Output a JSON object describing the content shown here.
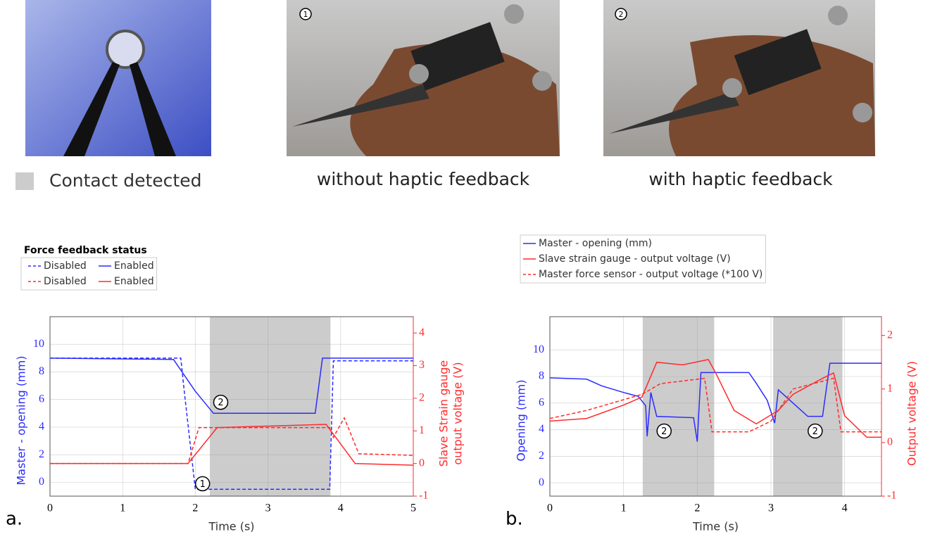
{
  "figure": {
    "photo_markers": [
      "1",
      "2"
    ],
    "contact_label": "Contact detected",
    "captions": [
      "without haptic feedback",
      "with haptic feedback"
    ],
    "panel_labels": [
      "a.",
      "b."
    ]
  },
  "chart_data": [
    {
      "type": "line",
      "xlabel": "Time (s)",
      "ylabel": [
        "Master - opening (mm)"
      ],
      "y2label": [
        "Slave Strain gauge",
        "output voltage (V)"
      ],
      "xlim": [
        0,
        5
      ],
      "xticks": [
        0,
        1,
        2,
        3,
        4,
        5
      ],
      "ylim": [
        -1,
        12
      ],
      "yticks": [
        0,
        2,
        4,
        6,
        8,
        10
      ],
      "y2lim": [
        -1,
        4.5
      ],
      "y2ticks": [
        -1,
        0,
        1,
        2,
        3,
        4
      ],
      "grid": true,
      "contact_regions": [
        [
          2.2,
          3.86
        ]
      ],
      "legend_title": "Force feedback status",
      "annotations": [
        "2",
        "1"
      ],
      "series": [
        {
          "name": "Disabled",
          "color": "#2b2bff",
          "dash": true,
          "x": [
            0,
            1.8,
            1.85,
            2.0,
            3.85,
            3.9,
            5
          ],
          "values": [
            9,
            9,
            6.5,
            -0.5,
            -0.5,
            8.8,
            8.8
          ]
        },
        {
          "name": "Enabled",
          "color": "#2b2bff",
          "dash": false,
          "x": [
            0,
            1.7,
            2.0,
            2.25,
            3.65,
            3.75,
            5
          ],
          "values": [
            9,
            8.9,
            6.6,
            5.0,
            5.0,
            9,
            9
          ]
        },
        {
          "name": "Disabled",
          "color": "#ff2b2b",
          "dash": true,
          "axis": "y2",
          "x": [
            0,
            1.9,
            2.05,
            3.85,
            3.9,
            4.05,
            4.25,
            5
          ],
          "values": [
            0,
            0,
            1.1,
            1.1,
            0.8,
            1.4,
            0.3,
            0.25
          ]
        },
        {
          "name": "Enabled",
          "color": "#ff2b2b",
          "dash": false,
          "axis": "y2",
          "x": [
            0,
            1.9,
            2.3,
            3.8,
            4.2,
            5
          ],
          "values": [
            0,
            0,
            1.1,
            1.2,
            0,
            -0.05
          ]
        }
      ]
    },
    {
      "type": "line",
      "xlabel": "Time (s)",
      "ylabel": [
        "Opening (mm)"
      ],
      "y2label": [
        "Output voltage (V)"
      ],
      "xlim": [
        0,
        4.5
      ],
      "xticks": [
        0,
        1,
        2,
        3,
        4
      ],
      "ylim": [
        -1,
        12.5
      ],
      "yticks": [
        0,
        2,
        4,
        6,
        8,
        10
      ],
      "y2lim": [
        -1,
        2.35
      ],
      "y2ticks": [
        -1,
        0,
        1,
        2
      ],
      "grid": true,
      "contact_regions": [
        [
          1.26,
          2.23
        ],
        [
          3.03,
          3.97
        ]
      ],
      "annotations": [
        "2",
        "2"
      ],
      "series": [
        {
          "name": "Master - opening (mm)",
          "color": "#2b2bff",
          "dash": false,
          "x": [
            0,
            0.5,
            0.7,
            1.0,
            1.2,
            1.3,
            1.32,
            1.37,
            1.45,
            1.95,
            2.0,
            2.05,
            2.7,
            2.8,
            2.95,
            3.05,
            3.1,
            3.3,
            3.5,
            3.7,
            3.8,
            4.5
          ],
          "values": [
            7.9,
            7.8,
            7.3,
            6.8,
            6.5,
            5.8,
            3.5,
            6.8,
            5,
            4.9,
            3.1,
            8.3,
            8.3,
            7.5,
            6.2,
            4.5,
            7.0,
            6,
            5,
            5,
            9,
            9
          ]
        },
        {
          "name": "Slave strain gauge - output voltage (V)",
          "color": "#ff2b2b",
          "dash": false,
          "axis": "y2",
          "x": [
            0,
            0.5,
            1.0,
            1.25,
            1.45,
            1.8,
            2.15,
            2.25,
            2.5,
            2.8,
            3.1,
            3.3,
            3.7,
            3.85,
            4.0,
            4.3,
            4.5
          ],
          "values": [
            0.4,
            0.45,
            0.7,
            0.85,
            1.5,
            1.45,
            1.55,
            1.3,
            0.6,
            0.35,
            0.6,
            0.9,
            1.2,
            1.3,
            0.5,
            0.1,
            0.1
          ]
        },
        {
          "name": "Master force sensor - output voltage (*100 V)",
          "color": "#ff2b2b",
          "dash": true,
          "axis": "y2",
          "x": [
            0,
            0.5,
            1.0,
            1.25,
            1.5,
            2.1,
            2.2,
            2.7,
            3.0,
            3.3,
            3.85,
            3.95,
            4.5
          ],
          "values": [
            0.45,
            0.6,
            0.8,
            0.9,
            1.1,
            1.2,
            0.2,
            0.2,
            0.4,
            1.0,
            1.2,
            0.2,
            0.2
          ]
        }
      ]
    }
  ]
}
